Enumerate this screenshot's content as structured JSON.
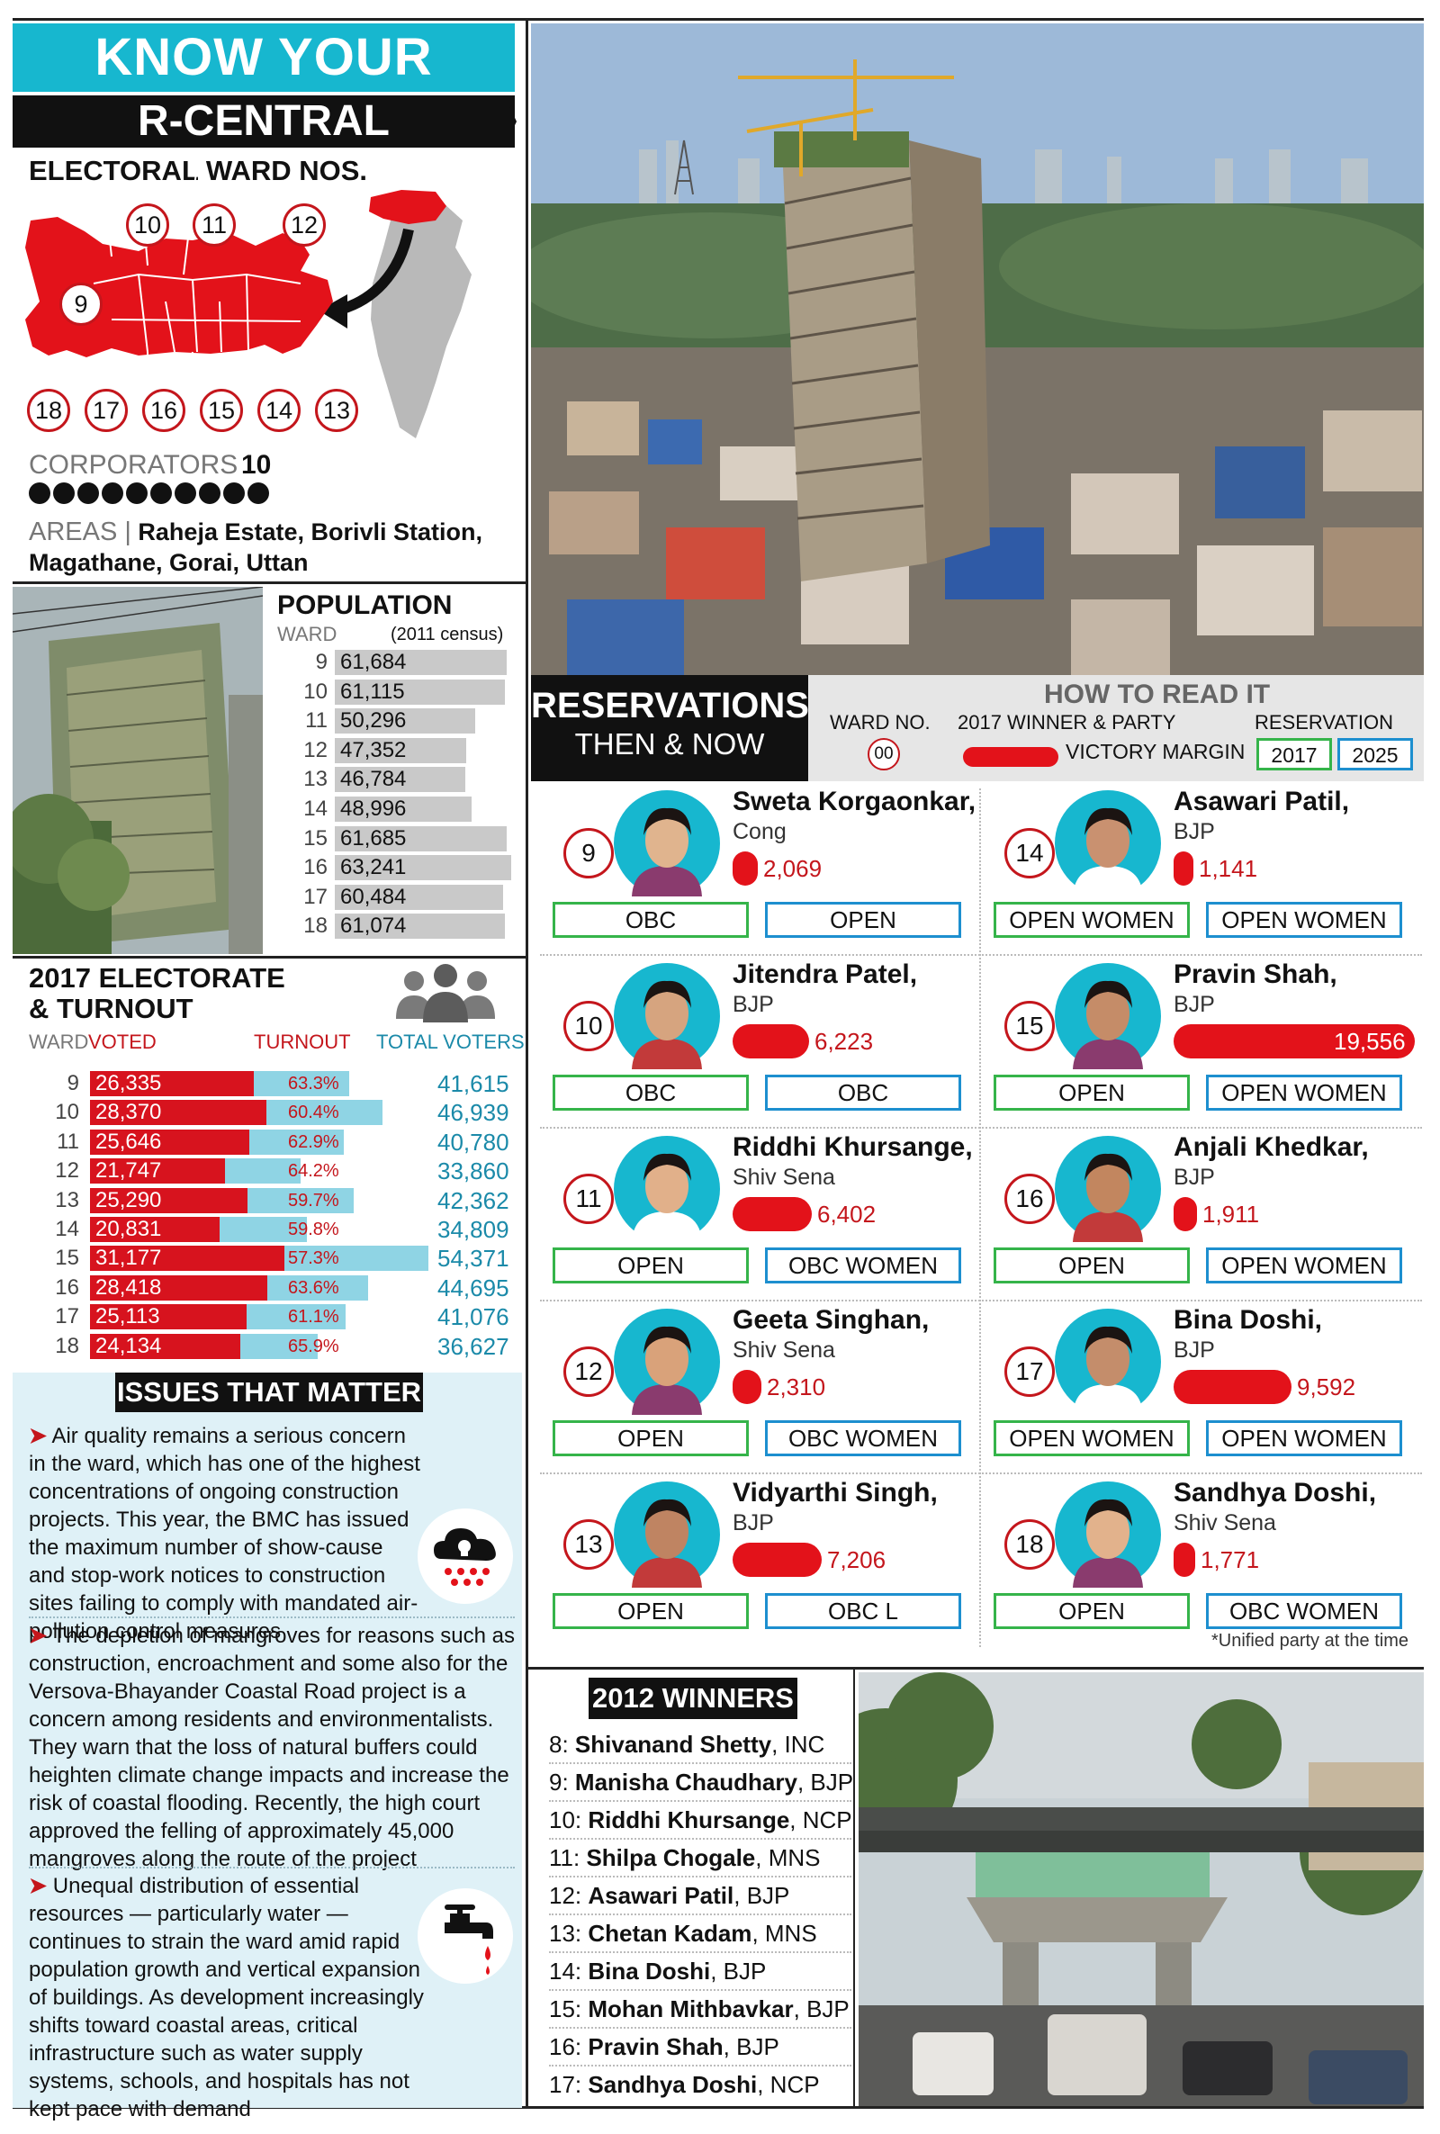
{
  "header": {
    "title": "KNOW YOUR WARD",
    "ward": "R-CENTRAL",
    "electoral_label": "ELECTORAL WARD NOS."
  },
  "map": {
    "wards_top": [
      "10",
      "11",
      "12"
    ],
    "ward_left": "9",
    "wards_bottom": [
      "18",
      "17",
      "16",
      "15",
      "14",
      "13"
    ],
    "highlight_color": "#e3121a"
  },
  "corporators": {
    "label": "CORPORATORS",
    "count": "10",
    "dots": 10
  },
  "areas": {
    "label": "AREAS |",
    "text": "Raheja Estate, Borivli Station, Magathane, Gorai, Uttan"
  },
  "population": {
    "title": "POPULATION",
    "ward_label": "WARD",
    "census_label": "(2011 census)",
    "rows": [
      {
        "ward": "9",
        "value": "61,684",
        "n": 61684
      },
      {
        "ward": "10",
        "value": "61,115",
        "n": 61115
      },
      {
        "ward": "11",
        "value": "50,296",
        "n": 50296
      },
      {
        "ward": "12",
        "value": "47,352",
        "n": 47352
      },
      {
        "ward": "13",
        "value": "46,784",
        "n": 46784
      },
      {
        "ward": "14",
        "value": "48,996",
        "n": 48996
      },
      {
        "ward": "15",
        "value": "61,685",
        "n": 61685
      },
      {
        "ward": "16",
        "value": "63,241",
        "n": 63241
      },
      {
        "ward": "17",
        "value": "60,484",
        "n": 60484
      },
      {
        "ward": "18",
        "value": "61,074",
        "n": 61074
      }
    ]
  },
  "electorate": {
    "title_line1": "2017 ELECTORATE",
    "title_line2": "& TURNOUT",
    "col_ward": "WARD",
    "col_voted": "VOTED",
    "col_turnout": "TURNOUT",
    "col_total": "TOTAL VOTERS",
    "rows": [
      {
        "ward": "9",
        "voted": "26,335",
        "turnout": "63.3%",
        "total": "41,615",
        "v": 26335,
        "t": 41615
      },
      {
        "ward": "10",
        "voted": "28,370",
        "turnout": "60.4%",
        "total": "46,939",
        "v": 28370,
        "t": 46939
      },
      {
        "ward": "11",
        "voted": "25,646",
        "turnout": "62.9%",
        "total": "40,780",
        "v": 25646,
        "t": 40780
      },
      {
        "ward": "12",
        "voted": "21,747",
        "turnout": "64.2%",
        "total": "33,860",
        "v": 21747,
        "t": 33860
      },
      {
        "ward": "13",
        "voted": "25,290",
        "turnout": "59.7%",
        "total": "42,362",
        "v": 25290,
        "t": 42362
      },
      {
        "ward": "14",
        "voted": "20,831",
        "turnout": "59.8%",
        "total": "34,809",
        "v": 20831,
        "t": 34809
      },
      {
        "ward": "15",
        "voted": "31,177",
        "turnout": "57.3%",
        "total": "54,371",
        "v": 31177,
        "t": 54371
      },
      {
        "ward": "16",
        "voted": "28,418",
        "turnout": "63.6%",
        "total": "44,695",
        "v": 28418,
        "t": 44695
      },
      {
        "ward": "17",
        "voted": "25,113",
        "turnout": "61.1%",
        "total": "41,076",
        "v": 25113,
        "t": 41076
      },
      {
        "ward": "18",
        "voted": "24,134",
        "turnout": "65.9%",
        "total": "36,627",
        "v": 24134,
        "t": 36627
      }
    ]
  },
  "issues": {
    "title": "ISSUES THAT MATTER",
    "items": [
      "Air quality remains a serious concern in the ward, which has one of the highest concentrations of ongoing construction projects. This year, the BMC has issued the maximum number of show-cause and stop-work notices to construction sites failing to comply with mandated air-pollution control measures",
      "The depletion of mangroves for reasons such as construction, encroachment and some also for the Versova-Bhayander Coastal Road project is a concern among residents and environmentalists. They warn that the loss of natural buffers could heighten climate change impacts and increase the risk of coastal flooding. Recently, the high court approved the felling of approximately 45,000 mangroves along the route of the project",
      "Unequal distribution of essential resources — particularly water — continues to strain the ward amid rapid population growth and vertical expansion of buildings. As development increasingly shifts toward coastal areas, critical infrastructure such as water supply systems, schools, and hospitals has not kept pace with demand"
    ],
    "icons": [
      "pollution-cloud-icon",
      "water-tap-icon"
    ]
  },
  "reservations": {
    "title": "RESERVATIONS",
    "subtitle": "THEN & NOW",
    "how_to_read": {
      "title": "HOW TO READ IT",
      "ward_no": "WARD NO.",
      "ward_sample": "00",
      "winner_party": "2017 WINNER & PARTY",
      "victory_margin": "VICTORY MARGIN",
      "reservation": "RESERVATION",
      "y2017": "2017",
      "y2025": "2025"
    },
    "cards": [
      {
        "ward": "9",
        "name": "Sweta Korgaonkar,",
        "party": "Cong",
        "margin": "2,069",
        "m": 2069,
        "r2017": "OBC",
        "r2025": "OPEN"
      },
      {
        "ward": "14",
        "name": "Asawari Patil,",
        "party": "BJP",
        "margin": "1,141",
        "m": 1141,
        "r2017": "OPEN WOMEN",
        "r2025": "OPEN WOMEN"
      },
      {
        "ward": "10",
        "name": "Jitendra Patel,",
        "party": "BJP",
        "margin": "6,223",
        "m": 6223,
        "r2017": "OBC",
        "r2025": "OBC"
      },
      {
        "ward": "15",
        "name": "Pravin Shah,",
        "party": "BJP",
        "margin": "19,556",
        "m": 19556,
        "r2017": "OPEN",
        "r2025": "OPEN WOMEN"
      },
      {
        "ward": "11",
        "name": "Riddhi Khursange,",
        "party": "Shiv Sena",
        "margin": "6,402",
        "m": 6402,
        "r2017": "OPEN",
        "r2025": "OBC WOMEN"
      },
      {
        "ward": "16",
        "name": "Anjali Khedkar,",
        "party": "BJP",
        "margin": "1,911",
        "m": 1911,
        "r2017": "OPEN",
        "r2025": "OPEN WOMEN"
      },
      {
        "ward": "12",
        "name": "Geeta Singhan,",
        "party": "Shiv Sena",
        "margin": "2,310",
        "m": 2310,
        "r2017": "OPEN",
        "r2025": "OBC WOMEN"
      },
      {
        "ward": "17",
        "name": "Bina Doshi,",
        "party": "BJP",
        "margin": "9,592",
        "m": 9592,
        "r2017": "OPEN WOMEN",
        "r2025": "OPEN WOMEN"
      },
      {
        "ward": "13",
        "name": "Vidyarthi Singh,",
        "party": "BJP",
        "margin": "7,206",
        "m": 7206,
        "r2017": "OPEN",
        "r2025": "OBC L"
      },
      {
        "ward": "18",
        "name": "Sandhya Doshi,",
        "party": "Shiv Sena",
        "margin": "1,771",
        "m": 1771,
        "r2017": "OPEN",
        "r2025": "OBC WOMEN"
      }
    ],
    "footnote": "*Unified party at the time"
  },
  "winners_2012": {
    "title": "2012 WINNERS",
    "items": [
      {
        "ward": "8:",
        "name": "Shivanand Shetty",
        "party": ", INC"
      },
      {
        "ward": "9:",
        "name": "Manisha Chaudhary",
        "party": ", BJP"
      },
      {
        "ward": "10:",
        "name": "Riddhi Khursange",
        "party": ", NCP"
      },
      {
        "ward": "11:",
        "name": "Shilpa Chogale",
        "party": ", MNS"
      },
      {
        "ward": "12:",
        "name": "Asawari Patil",
        "party": ", BJP"
      },
      {
        "ward": "13:",
        "name": "Chetan Kadam",
        "party": ", MNS"
      },
      {
        "ward": "14:",
        "name": "Bina Doshi",
        "party": ", BJP"
      },
      {
        "ward": "15:",
        "name": "Mohan Mithbavkar",
        "party": ", BJP"
      },
      {
        "ward": "16:",
        "name": "Pravin Shah",
        "party": ", BJP"
      },
      {
        "ward": "17:",
        "name": "Sandhya Doshi",
        "party": ", NCP"
      }
    ]
  },
  "colors": {
    "cyan": "#17b7cf",
    "red": "#e3121a",
    "green": "#35b44a",
    "blue": "#1d8fcf",
    "bar_gray": "#c9c9c9",
    "turnout_blue": "#8fd4e4"
  }
}
